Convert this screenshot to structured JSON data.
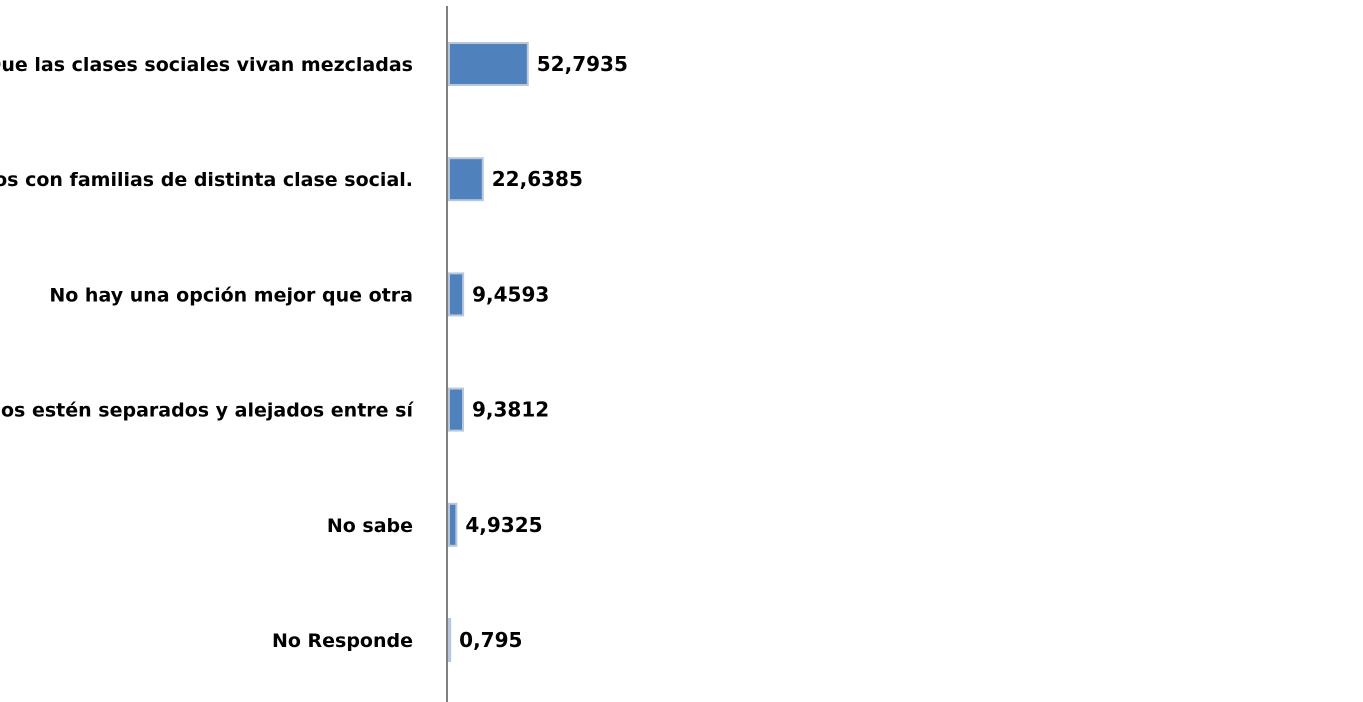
{
  "chart_data": {
    "type": "bar",
    "orientation": "horizontal",
    "categories": [
      "Que las clases sociales vivan mezcladas",
      "Que existan barrios con familias de distinta clase social.",
      "No hay una opción mejor que otra",
      "Que los barrios estén separados y alejados entre sí",
      "No sabe",
      "No Responde"
    ],
    "values": [
      52.7935,
      22.6385,
      9.4593,
      9.3812,
      4.9325,
      0.795
    ],
    "value_labels": [
      "52,7935",
      "22,6385",
      "9,4593",
      "9,3812",
      "4,9325",
      "0,795"
    ],
    "xlim": [
      0,
      60
    ],
    "bar_color": "#4f81bd",
    "bar_border_color": "#b9c7dd",
    "axis_color": "#808080",
    "grid": false,
    "legend": "none"
  }
}
